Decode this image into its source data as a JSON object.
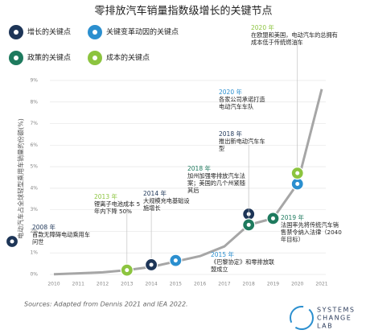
{
  "chart_data": {
    "type": "line",
    "title": "零排放汽车销量指数级增长的关键节点",
    "y_label": "电动汽车占全球轻型乘用车销量的份额(%)",
    "categories": [
      "2010",
      "2011",
      "2012",
      "2013",
      "2014",
      "2015",
      "2016",
      "2017",
      "2018",
      "2019",
      "2020",
      "2021"
    ],
    "values": [
      0.01,
      0.05,
      0.1,
      0.2,
      0.35,
      0.6,
      0.85,
      1.3,
      2.3,
      2.6,
      4.2,
      8.6
    ],
    "color": "#a6a6a6",
    "ylim": [
      0,
      9
    ],
    "yticks": [
      {
        "value": 0,
        "label": "0%"
      },
      {
        "value": 1,
        "label": "1%"
      },
      {
        "value": 2,
        "label": "2%"
      },
      {
        "value": 3,
        "label": "3%"
      },
      {
        "value": 4,
        "label": "4%"
      },
      {
        "value": 5,
        "label": "5%"
      },
      {
        "value": 6,
        "label": "6%"
      },
      {
        "value": 7,
        "label": "7%"
      },
      {
        "value": 8,
        "label": "8%"
      },
      {
        "value": 9,
        "label": "9%"
      }
    ],
    "grid": true,
    "legend": [
      {
        "kind": "growth",
        "name": "增长的关键点",
        "color": "#1d3557"
      },
      {
        "kind": "driver",
        "name": "关键变革动因的关键点",
        "color": "#2b8fcf"
      },
      {
        "kind": "policy",
        "name": "政策的关键点",
        "color": "#1e7a5e"
      },
      {
        "kind": "cost",
        "name": "成本的关键点",
        "color": "#8cc43f"
      }
    ],
    "annotations": [
      {
        "kind": "growth",
        "label": "2008 年",
        "text": "首款无障碍电动乘用车问世"
      },
      {
        "kind": "cost",
        "label": "2013 年",
        "text": "锂离子电池成本 5 年内下降 50%",
        "x": "2013",
        "y": 0.2
      },
      {
        "kind": "growth",
        "label": "2014 年",
        "text": "大规模充电基础设施增长",
        "x": "2014",
        "y": 0.45
      },
      {
        "kind": "driver",
        "label": "2015 年",
        "text": "《巴黎协定》和零排放联盟成立",
        "x": "2015",
        "y": 0.65
      },
      {
        "kind": "growth",
        "label": "2018 年",
        "text": "推出新电动汽车车型",
        "x": "2018",
        "y": 2.8
      },
      {
        "kind": "policy",
        "label": "2018 年",
        "text": "加州加强零排放汽车法案；美国的几个州紧随其后",
        "x": "2018",
        "y": 2.3
      },
      {
        "kind": "policy",
        "label": "2019 年",
        "text": "法国率先将传统汽车销售禁令纳入法律（2040 年目标）",
        "x": "2019",
        "y": 2.6
      },
      {
        "kind": "driver",
        "label": "2020 年",
        "text": "各家公司承诺打造电动汽车车队",
        "x": "2020",
        "y": 4.2
      },
      {
        "kind": "cost",
        "label": "2020 年",
        "text": "在欧盟和美国，电动汽车的总拥有成本低于传统燃油车",
        "x": "2020",
        "y": 4.7
      }
    ],
    "source": "Sources: Adapted from Dennis 2021 and IEA 2022.",
    "logo": [
      "SYSTEMS",
      "CHANGE",
      "LAB"
    ]
  }
}
